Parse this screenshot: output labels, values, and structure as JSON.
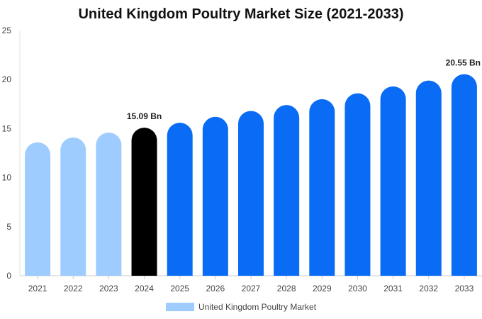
{
  "chart_data": {
    "type": "bar",
    "title": "United Kingdom Poultry Market Size (2021-2033)",
    "categories": [
      "2021",
      "2022",
      "2023",
      "2024",
      "2025",
      "2026",
      "2027",
      "2028",
      "2029",
      "2030",
      "2031",
      "2032",
      "2033"
    ],
    "series": [
      {
        "name": "United Kingdom Poultry Market",
        "values": [
          13.6,
          14.1,
          14.6,
          15.09,
          15.6,
          16.2,
          16.8,
          17.4,
          18.0,
          18.6,
          19.3,
          19.9,
          20.55
        ]
      }
    ],
    "data_labels": [
      {
        "category": "2024",
        "text": "15.09 Bn"
      },
      {
        "category": "2033",
        "text": "20.55 Bn"
      }
    ],
    "bar_colors": {
      "historical": "#9fccff",
      "current": "#000000",
      "forecast": "#0a6cf5"
    },
    "color_groups": [
      "historical",
      "historical",
      "historical",
      "current",
      "forecast",
      "forecast",
      "forecast",
      "forecast",
      "forecast",
      "forecast",
      "forecast",
      "forecast",
      "forecast"
    ],
    "ylim": [
      0,
      25
    ],
    "yticks": [
      0,
      5,
      10,
      15,
      20,
      25
    ],
    "grid": false,
    "legend_position": "bottom",
    "xlabel": "",
    "ylabel": ""
  }
}
